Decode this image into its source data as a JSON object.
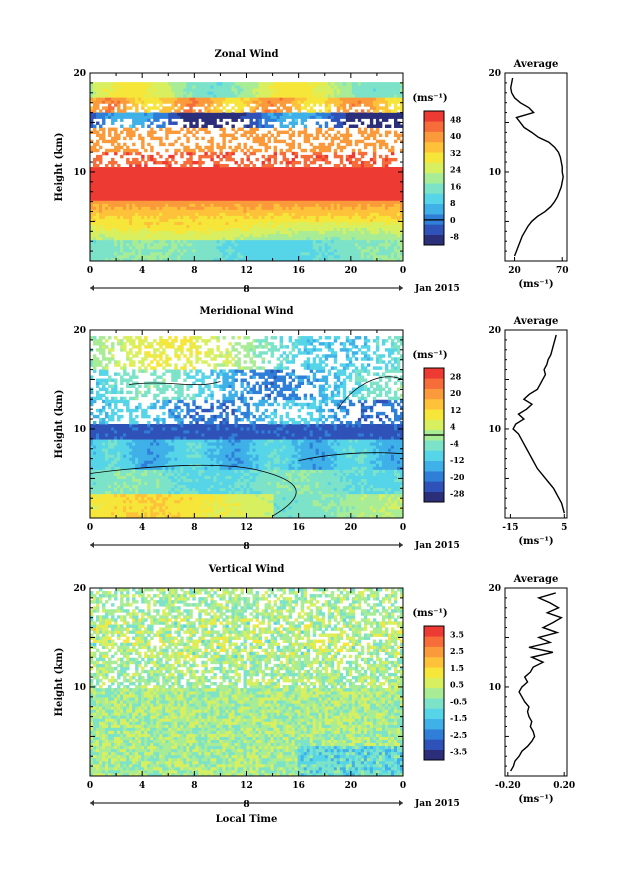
{
  "chart_data": [
    {
      "id": "zonal",
      "type": "heatmap",
      "title": "Zonal Wind",
      "xlabel": "",
      "ylabel": "Height (km)",
      "x_ticks": [
        "0",
        "4",
        "8",
        "12",
        "16",
        "20",
        "0"
      ],
      "y_ticks": [
        "20",
        "10"
      ],
      "date_marker": "8",
      "date_label": "Jan 2015",
      "xlim": [
        0,
        24
      ],
      "ylim": [
        1,
        20
      ],
      "colorbar": {
        "unit": "(ms⁻¹)",
        "labels": [
          "48",
          "40",
          "32",
          "24",
          "16",
          "8",
          "0",
          "-8"
        ],
        "range": [
          -12,
          52
        ],
        "black_line_at": 0,
        "colors": [
          "#2b2f7a",
          "#2f52b8",
          "#2f7fd8",
          "#3fb0e8",
          "#56d4e8",
          "#7de3c8",
          "#a8ec96",
          "#d8f060",
          "#f6e63a",
          "#fdc23a",
          "#fb9a3a",
          "#f66d3a",
          "#ed3a33"
        ]
      },
      "profile": {
        "title": "Average",
        "xlabel": "(ms⁻¹)",
        "x_ticks": [
          "20",
          "70"
        ],
        "y_ticks": [
          "20",
          "10"
        ],
        "xlim": [
          10,
          75
        ],
        "height": [
          1.5,
          2,
          2.5,
          3,
          3.5,
          4,
          4.5,
          5,
          5.5,
          6,
          6.5,
          7,
          7.5,
          8,
          8.5,
          9,
          9.5,
          10,
          10.5,
          11,
          11.5,
          12,
          12.5,
          13,
          13.5,
          14,
          14.5,
          15,
          15.5,
          16,
          16.5,
          17,
          17.5,
          18,
          18.5,
          19,
          19.5
        ],
        "values": [
          20,
          22,
          24,
          26,
          28,
          31,
          34,
          38,
          44,
          52,
          58,
          62,
          65,
          67,
          69,
          70,
          71,
          70,
          70,
          69,
          68,
          66,
          62,
          56,
          45,
          38,
          30,
          26,
          22,
          40,
          35,
          26,
          20,
          17,
          16,
          17,
          18
        ]
      }
    },
    {
      "id": "meridional",
      "type": "heatmap",
      "title": "Meridional Wind",
      "xlabel": "",
      "ylabel": "Height (km)",
      "x_ticks": [
        "0",
        "4",
        "8",
        "12",
        "16",
        "20",
        "0"
      ],
      "y_ticks": [
        "20",
        "10"
      ],
      "date_marker": "8",
      "date_label": "Jan 2015",
      "xlim": [
        0,
        24
      ],
      "ylim": [
        1,
        20
      ],
      "colorbar": {
        "unit": "(ms⁻¹)",
        "labels": [
          "28",
          "20",
          "12",
          "4",
          "-4",
          "-12",
          "-20",
          "-28"
        ],
        "range": [
          -32,
          32
        ],
        "black_line_at": 0,
        "colors": [
          "#2b2f7a",
          "#2f52b8",
          "#2f7fd8",
          "#3fb0e8",
          "#56d4e8",
          "#7de3c8",
          "#a8ec96",
          "#d8f060",
          "#f6e63a",
          "#fdc23a",
          "#fb9a3a",
          "#f66d3a",
          "#ed3a33"
        ]
      },
      "profile": {
        "title": "Average",
        "xlabel": "(ms⁻¹)",
        "x_ticks": [
          "-15",
          "5"
        ],
        "y_ticks": [
          "20",
          "10"
        ],
        "xlim": [
          -17,
          6
        ],
        "height": [
          1.5,
          2,
          2.5,
          3,
          3.5,
          4,
          4.5,
          5,
          5.5,
          6,
          6.5,
          7,
          7.5,
          8,
          8.5,
          9,
          9.5,
          10,
          10.5,
          11,
          11.5,
          12,
          12.5,
          13,
          13.5,
          14,
          14.5,
          15,
          15.5,
          16,
          16.5,
          17,
          17.5,
          18,
          18.5,
          19,
          19.5
        ],
        "values": [
          5,
          4.5,
          4,
          3,
          2,
          1,
          -0.5,
          -2,
          -3.5,
          -5,
          -6,
          -7,
          -8,
          -9,
          -10,
          -11,
          -12,
          -14,
          -13,
          -10,
          -12,
          -9,
          -7,
          -10,
          -8,
          -5,
          -4,
          -3,
          -2,
          -2.5,
          -1.5,
          -1,
          0,
          0.5,
          1,
          1.5,
          2
        ]
      }
    },
    {
      "id": "vertical",
      "type": "heatmap",
      "title": "Vertical Wind",
      "xlabel": "Local Time",
      "ylabel": "Height (km)",
      "x_ticks": [
        "0",
        "4",
        "8",
        "12",
        "16",
        "20",
        "0"
      ],
      "y_ticks": [
        "20",
        "10"
      ],
      "date_marker": "8",
      "date_label": "Jan 2015",
      "xlim": [
        0,
        24
      ],
      "ylim": [
        1,
        20
      ],
      "colorbar": {
        "unit": "(ms⁻¹)",
        "labels": [
          "3.5",
          "2.5",
          "1.5",
          "0.5",
          "-0.5",
          "-1.5",
          "-2.5",
          "-3.5"
        ],
        "range": [
          -4,
          4
        ],
        "black_line_at": null,
        "colors": [
          "#2b2f7a",
          "#2f52b8",
          "#2f7fd8",
          "#3fb0e8",
          "#56d4e8",
          "#7de3c8",
          "#a8ec96",
          "#d8f060",
          "#f6e63a",
          "#fdc23a",
          "#fb9a3a",
          "#f66d3a",
          "#ed3a33"
        ]
      },
      "profile": {
        "title": "Average",
        "xlabel": "(ms⁻¹)",
        "x_ticks": [
          "-0.20",
          "0.20"
        ],
        "y_ticks": [
          "20",
          "10"
        ],
        "xlim": [
          -0.22,
          0.22
        ],
        "height": [
          1.5,
          2,
          2.5,
          3,
          3.5,
          4,
          4.5,
          5,
          5.5,
          6,
          6.5,
          7,
          7.5,
          8,
          8.5,
          9,
          9.5,
          10,
          10.5,
          11,
          11.5,
          12,
          12.5,
          13,
          13.5,
          14,
          14.5,
          15,
          15.5,
          16,
          16.5,
          17,
          17.5,
          18,
          18.5,
          19,
          19.5
        ],
        "values": [
          -0.18,
          -0.16,
          -0.15,
          -0.12,
          -0.1,
          -0.06,
          -0.03,
          -0.01,
          -0.02,
          -0.04,
          -0.03,
          -0.05,
          -0.06,
          -0.05,
          -0.08,
          -0.1,
          -0.12,
          -0.1,
          -0.06,
          -0.08,
          -0.04,
          -0.02,
          0.05,
          -0.03,
          0.12,
          -0.05,
          0.1,
          0.02,
          0.15,
          0.05,
          0.12,
          0.18,
          0.08,
          0.16,
          0.1,
          0.02,
          0.14
        ]
      }
    }
  ]
}
